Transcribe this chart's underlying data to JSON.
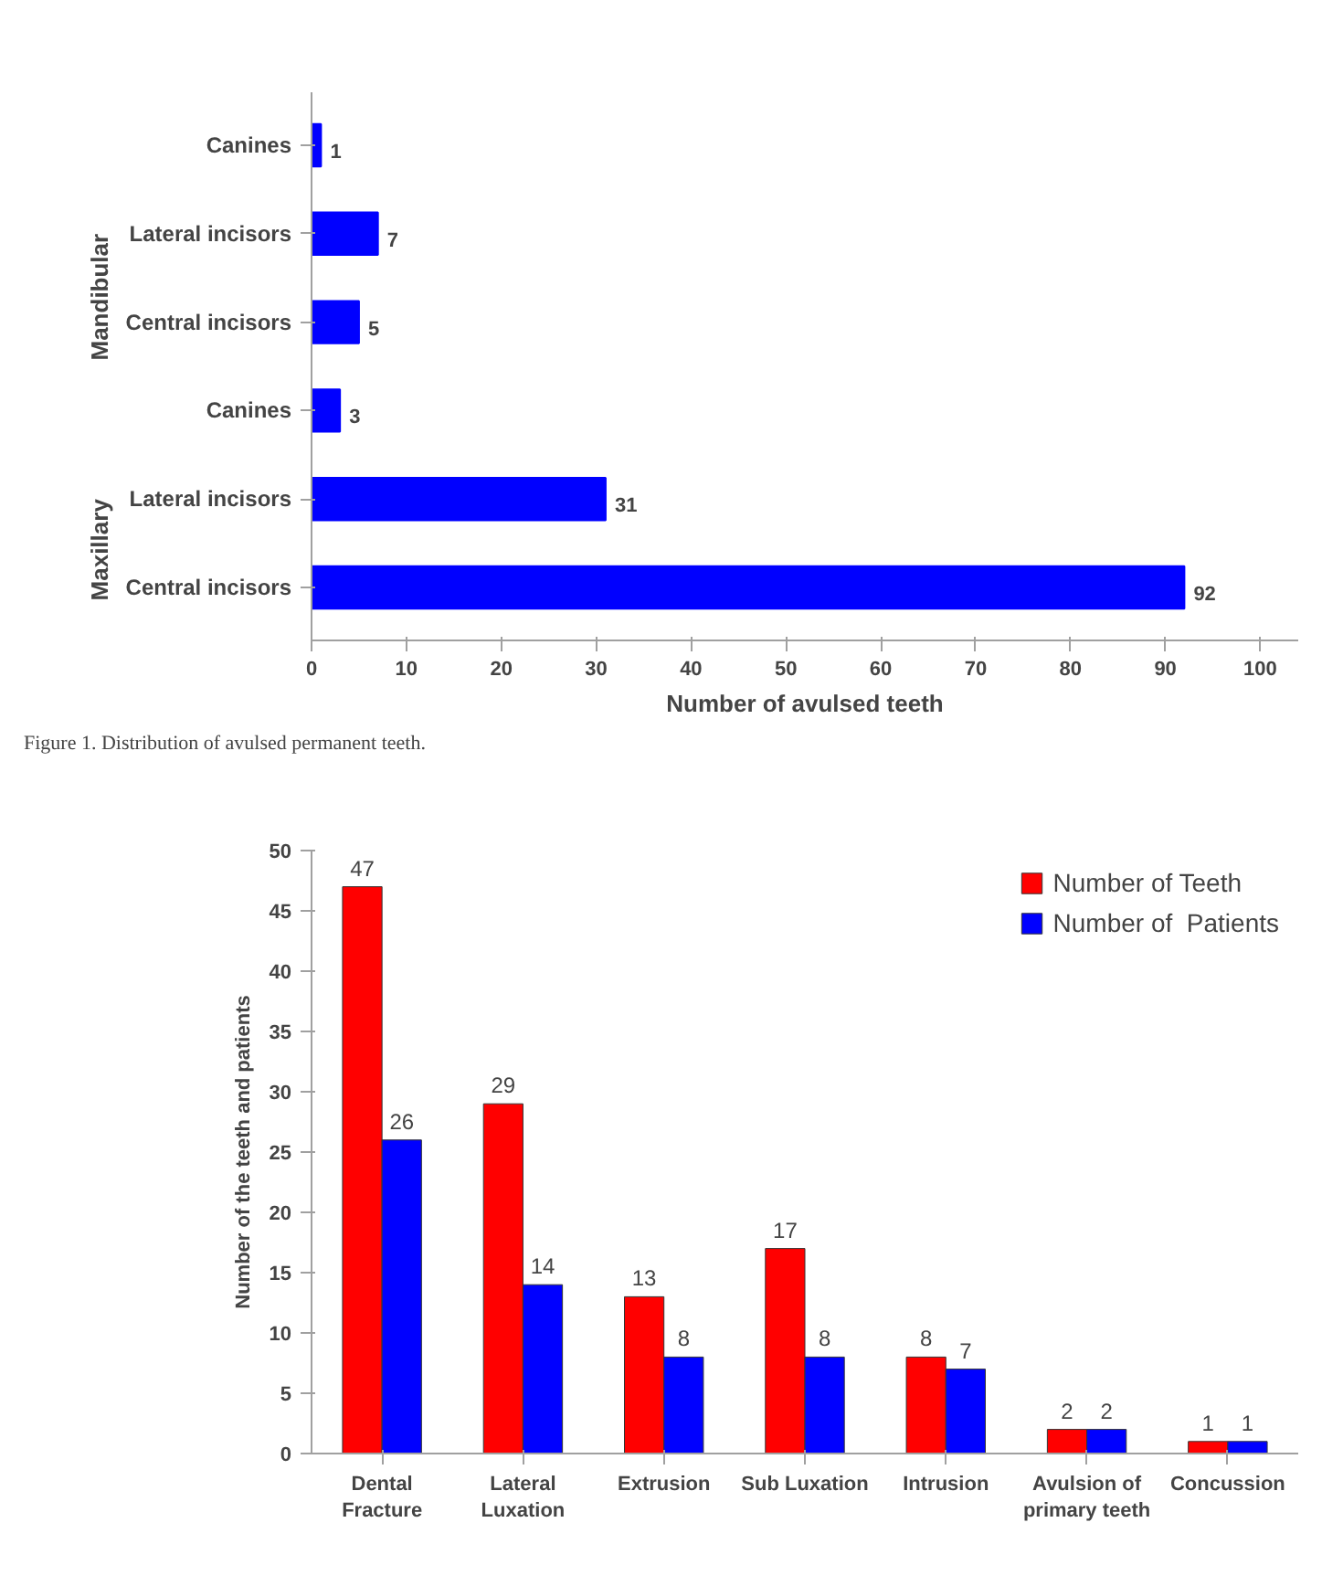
{
  "chart_data": [
    {
      "type": "bar",
      "orientation": "horizontal",
      "categories": [
        "Canines",
        "Lateral incisors",
        "Central incisors",
        "Canines",
        "Lateral incisors",
        "Central incisors"
      ],
      "values": [
        1,
        7,
        5,
        3,
        31,
        92
      ],
      "color": "#0000ff",
      "xlim": [
        0,
        104
      ],
      "xticks": [
        0,
        10,
        20,
        30,
        40,
        50,
        60,
        70,
        80,
        90,
        100
      ],
      "xlabel": "Number of avulsed teeth",
      "data_labels": true,
      "grid": false,
      "annotations": [
        "Mandibular",
        "Maxillary",
        "Figure 1. Distribution of avulsed permanent teeth."
      ]
    },
    {
      "type": "bar",
      "categories": [
        "Dental\nFracture",
        "Lateral\nLuxation",
        "Extrusion",
        "Sub Luxation",
        "Intrusion",
        "Avulsion of\nprimary teeth",
        "Concussion"
      ],
      "series": [
        {
          "name": "Number of Teeth",
          "color": "#ff0000",
          "values": [
            47,
            29,
            13,
            17,
            8,
            2,
            1
          ]
        },
        {
          "name": "Number of  Patients",
          "color": "#0000ff",
          "values": [
            26,
            14,
            8,
            8,
            7,
            2,
            1
          ]
        }
      ],
      "ylim": [
        0,
        50
      ],
      "yticks": [
        0,
        5,
        10,
        15,
        20,
        25,
        30,
        35,
        40,
        45,
        50
      ],
      "ylabel": "Number of the teeth and patients",
      "data_labels": true,
      "grid": false,
      "legend": "top right"
    }
  ]
}
